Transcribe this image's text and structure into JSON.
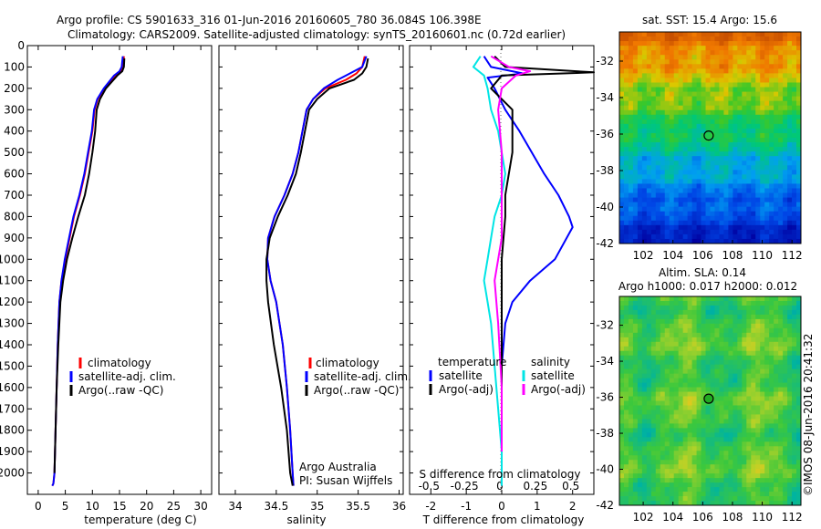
{
  "header": {
    "line1": "Argo profile: CS 5901633_316 01-Jun-2016 20160605_780 36.084S 106.398E",
    "line2": "Climatology: CARS2009. Satellite-adjusted climatology: synTS_20160601.nc (0.72d earlier)"
  },
  "chart_data": [
    {
      "id": "temperature",
      "type": "line",
      "xlabel": "temperature (deg C)",
      "ylabel": "",
      "xlim": [
        -2,
        32
      ],
      "ylim": [
        2100,
        0
      ],
      "xticks": [
        0,
        5,
        10,
        15,
        20,
        25,
        30
      ],
      "yticks": [
        0,
        100,
        200,
        300,
        400,
        500,
        600,
        700,
        800,
        900,
        1000,
        1100,
        1200,
        1300,
        1400,
        1500,
        1600,
        1700,
        1800,
        1900,
        2000
      ],
      "legend": [
        "climatology",
        "satellite-adj. clim.",
        "Argo(..raw -QC)"
      ],
      "series": [
        {
          "name": "climatology",
          "color": "#ff0000",
          "x": [
            15.8,
            15.7,
            15.3,
            14.2,
            12.2,
            11.0,
            10.4,
            10.0,
            9.3,
            8.6,
            7.7,
            6.6,
            5.8,
            5.0,
            4.3,
            3.9,
            3.6,
            3.4,
            3.2,
            3.0,
            2.8,
            2.6
          ],
          "y": [
            50,
            100,
            120,
            140,
            200,
            250,
            300,
            400,
            500,
            600,
            700,
            800,
            900,
            1000,
            1100,
            1200,
            1400,
            1600,
            1800,
            2000,
            2050,
            2060
          ]
        },
        {
          "name": "satellite-adj. clim.",
          "color": "#0000ff",
          "x": [
            15.6,
            15.4,
            15.0,
            14.0,
            12.1,
            10.9,
            10.3,
            9.9,
            9.2,
            8.5,
            7.6,
            6.5,
            5.7,
            4.9,
            4.3,
            3.9,
            3.6,
            3.4,
            3.2,
            3.0,
            2.8,
            2.6
          ],
          "y": [
            50,
            100,
            120,
            140,
            200,
            250,
            300,
            400,
            500,
            600,
            700,
            800,
            900,
            1000,
            1100,
            1200,
            1400,
            1600,
            1800,
            2000,
            2050,
            2060
          ]
        },
        {
          "name": "Argo(..raw -QC)",
          "color": "#000000",
          "x": [
            15.9,
            15.8,
            15.5,
            14.6,
            12.5,
            11.4,
            10.8,
            10.5,
            10.0,
            9.4,
            8.6,
            7.4,
            6.3,
            5.3,
            4.6,
            4.1,
            3.7,
            3.4,
            3.2,
            3.0
          ],
          "y": [
            60,
            100,
            120,
            140,
            200,
            250,
            300,
            400,
            500,
            600,
            700,
            800,
            900,
            1000,
            1100,
            1200,
            1400,
            1600,
            1800,
            2000
          ]
        }
      ]
    },
    {
      "id": "salinity",
      "type": "line",
      "xlabel": "salinity",
      "xlim": [
        33.8,
        36.05
      ],
      "ylim": [
        2100,
        0
      ],
      "xticks": [
        34,
        34.5,
        35,
        35.5,
        36
      ],
      "legend": [
        "climatology",
        "satellite-adj. clim.",
        "Argo(..raw -QC)"
      ],
      "series": [
        {
          "name": "climatology",
          "color": "#ff0000",
          "x": [
            35.58,
            35.55,
            35.48,
            35.35,
            35.1,
            34.95,
            34.87,
            34.82,
            34.77,
            34.7,
            34.6,
            34.48,
            34.4,
            34.39,
            34.43,
            34.5,
            34.58,
            34.63,
            34.67,
            34.7,
            34.71
          ],
          "y": [
            50,
            100,
            130,
            160,
            200,
            250,
            300,
            400,
            500,
            600,
            700,
            800,
            900,
            1000,
            1100,
            1200,
            1400,
            1600,
            1800,
            2000,
            2060
          ]
        },
        {
          "name": "satellite-adj. clim.",
          "color": "#0000ff",
          "x": [
            35.6,
            35.55,
            35.4,
            35.25,
            35.08,
            34.95,
            34.87,
            34.82,
            34.77,
            34.7,
            34.6,
            34.48,
            34.4,
            34.39,
            34.43,
            34.5,
            34.58,
            34.63,
            34.67,
            34.7,
            34.71
          ],
          "y": [
            50,
            100,
            130,
            160,
            200,
            250,
            300,
            400,
            500,
            600,
            700,
            800,
            900,
            1000,
            1100,
            1200,
            1400,
            1600,
            1800,
            2000,
            2060
          ]
        },
        {
          "name": "Argo(..raw -QC)",
          "color": "#000000",
          "x": [
            35.62,
            35.6,
            35.55,
            35.45,
            35.15,
            35.0,
            34.9,
            34.85,
            34.8,
            34.74,
            34.64,
            34.52,
            34.42,
            34.38,
            34.38,
            34.4,
            34.47,
            34.56,
            34.63,
            34.67,
            34.7
          ],
          "y": [
            60,
            100,
            130,
            160,
            200,
            250,
            300,
            400,
            500,
            600,
            700,
            800,
            900,
            1000,
            1100,
            1200,
            1400,
            1600,
            1800,
            2000,
            2060
          ]
        }
      ]
    },
    {
      "id": "difference",
      "type": "line",
      "xlabel": "T difference from climatology",
      "x2label": "S difference from climatology",
      "xlim": [
        -2.6,
        2.6
      ],
      "ylim": [
        2100,
        0
      ],
      "xticks": [
        -2,
        -1,
        0,
        1,
        2
      ],
      "x2ticks": [
        "-0.5",
        "-0.25",
        "0",
        "0.25",
        "0.5"
      ],
      "legend_titles": [
        "temperature",
        "salinity"
      ],
      "legend": [
        "satellite",
        "Argo(-adj)",
        "satellite",
        "Argo(-adj)"
      ],
      "series": [
        {
          "name": "satellite",
          "color": "#0000ff",
          "x": [
            -0.5,
            -0.3,
            0.6,
            -0.4,
            -0.2,
            0.1,
            0.5,
            1.2,
            1.6,
            1.9,
            2.0,
            1.5,
            0.8,
            0.3,
            0.1,
            0.0,
            0.0,
            0.0,
            0.0,
            0.0
          ],
          "y": [
            50,
            100,
            130,
            150,
            200,
            300,
            400,
            600,
            700,
            800,
            850,
            1000,
            1100,
            1200,
            1300,
            1500,
            1700,
            1900,
            2000,
            2060
          ]
        },
        {
          "name": "Argo(-adj)",
          "color": "#000000",
          "x": [
            -0.2,
            0.1,
            2.6,
            0.0,
            -0.3,
            0.3,
            0.3,
            0.3,
            0.2,
            0.1,
            0.1,
            0.0,
            0.0,
            0.0,
            0.0,
            0.0,
            0.0,
            0.0,
            0.0
          ],
          "y": [
            50,
            100,
            125,
            140,
            200,
            300,
            400,
            500,
            600,
            700,
            800,
            1000,
            1100,
            1300,
            1500,
            1700,
            1900,
            2000,
            2060
          ]
        },
        {
          "name": "satellite",
          "color": "#00e5e5",
          "x": [
            -0.6,
            -0.8,
            -0.5,
            -0.4,
            -0.3,
            -0.1,
            0.0,
            0.1,
            0.0,
            -0.2,
            -0.3,
            -0.4,
            -0.5,
            -0.4,
            -0.3,
            -0.2,
            -0.1,
            0.0,
            0.0
          ],
          "y": [
            50,
            100,
            140,
            200,
            300,
            400,
            500,
            600,
            700,
            800,
            900,
            1000,
            1100,
            1200,
            1300,
            1500,
            1700,
            1900,
            2060
          ]
        },
        {
          "name": "Argo(-adj)",
          "color": "#ff00ff",
          "x": [
            -0.3,
            0.2,
            0.8,
            0.4,
            0.0,
            -0.1,
            0.0,
            0.0,
            0.0,
            0.0,
            -0.1,
            -0.2,
            -0.1,
            0.0,
            0.0
          ],
          "y": [
            50,
            100,
            120,
            140,
            200,
            300,
            500,
            700,
            800,
            900,
            1000,
            1100,
            1300,
            1600,
            1900
          ]
        }
      ]
    },
    {
      "id": "sst-map",
      "type": "heatmap",
      "title": "sat. SST: 15.4  Argo: 15.6",
      "xticks": [
        102,
        104,
        106,
        108,
        110,
        112
      ],
      "yticks": [
        -32,
        -34,
        -36,
        -38,
        -40,
        -42
      ],
      "xlim": [
        100.4,
        112.6
      ],
      "ylim": [
        -42,
        -30.4
      ],
      "marker": {
        "lon": 106.4,
        "lat": -36.08
      }
    },
    {
      "id": "sla-map",
      "type": "heatmap",
      "title_line1": "Altim. SLA: 0.14",
      "title_line2": "Argo h1000: 0.017 h2000: 0.012",
      "xticks": [
        102,
        104,
        106,
        108,
        110,
        112
      ],
      "yticks": [
        -32,
        -34,
        -36,
        -38,
        -40,
        -42
      ],
      "xlim": [
        100.4,
        112.6
      ],
      "ylim": [
        -42,
        -30.4
      ],
      "marker": {
        "lon": 106.4,
        "lat": -36.08
      }
    }
  ],
  "annotations": {
    "institution": "Argo Australia",
    "pi": "PI: Susan Wijffels",
    "stamp": "©IMOS 08-Jun-2016 20:41:32"
  }
}
